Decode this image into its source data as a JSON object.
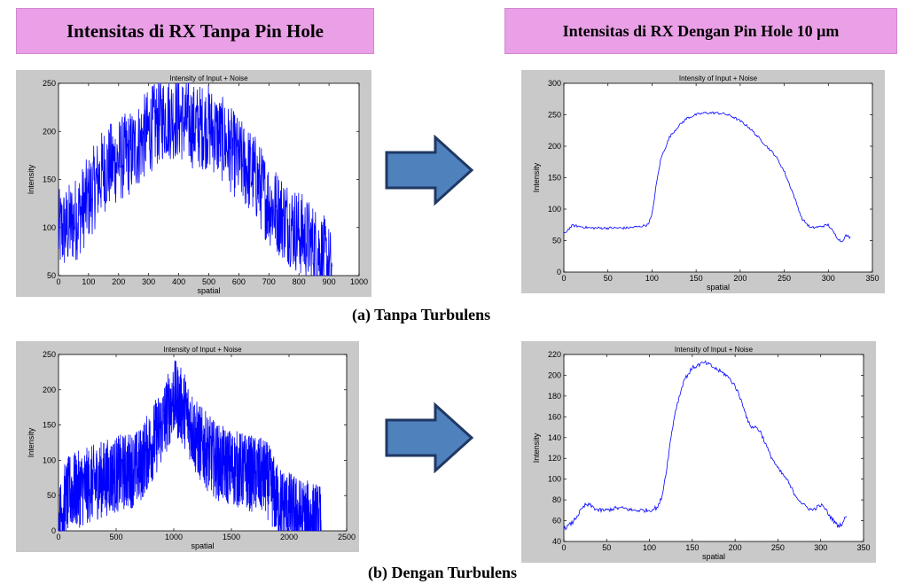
{
  "headers": {
    "left": "Intensitas di RX Tanpa Pin Hole",
    "right": "Intensitas di RX Dengan Pin Hole 10 μm"
  },
  "captions": {
    "a": "(a) Tanpa Turbulens",
    "b": "(b) Dengan  Turbulens"
  },
  "colors": {
    "header_bg": "#e9a0e6",
    "arrow_fill": "#4f81bd",
    "arrow_stroke": "#1f3864",
    "line": "#0000ff",
    "figure_bg": "#c9c9c9"
  },
  "icons": {
    "arrow": "right-arrow-icon"
  },
  "chart_data": [
    {
      "id": "a-left",
      "type": "line",
      "title": "Intensity of Input + Noise",
      "xlabel": "spatial",
      "ylabel": "Intensity",
      "xlim": [
        0,
        1000
      ],
      "ylim": [
        50,
        250
      ],
      "xticks": [
        0,
        100,
        200,
        300,
        400,
        500,
        600,
        700,
        800,
        900,
        1000
      ],
      "yticks": [
        50,
        100,
        150,
        200,
        250
      ],
      "noise": {
        "amp": 45,
        "density": 3
      },
      "series": [
        {
          "x": [
            0,
            30,
            60,
            100,
            150,
            200,
            250,
            300,
            350,
            400,
            450,
            500,
            550,
            600,
            650,
            700,
            750,
            800,
            850,
            880,
            910
          ],
          "values": [
            95,
            100,
            110,
            130,
            160,
            170,
            180,
            200,
            215,
            215,
            205,
            205,
            190,
            170,
            155,
            125,
            110,
            95,
            80,
            70,
            52
          ]
        }
      ]
    },
    {
      "id": "a-right",
      "type": "line",
      "title": "Intensity of Input + Noise",
      "xlabel": "spatial",
      "ylabel": "Intensity",
      "xlim": [
        0,
        350
      ],
      "ylim": [
        0,
        300
      ],
      "xticks": [
        0,
        50,
        100,
        150,
        200,
        250,
        300,
        350
      ],
      "yticks": [
        0,
        50,
        100,
        150,
        200,
        250,
        300
      ],
      "noise": {
        "amp": 2,
        "density": 1
      },
      "series": [
        {
          "x": [
            0,
            5,
            10,
            20,
            30,
            50,
            70,
            85,
            95,
            100,
            105,
            110,
            120,
            130,
            140,
            150,
            160,
            170,
            180,
            190,
            200,
            210,
            220,
            230,
            240,
            250,
            260,
            270,
            280,
            290,
            300,
            305,
            310,
            315,
            320,
            325
          ],
          "values": [
            60,
            68,
            74,
            72,
            70,
            70,
            70,
            72,
            75,
            90,
            140,
            180,
            215,
            232,
            245,
            250,
            253,
            253,
            252,
            248,
            240,
            230,
            215,
            200,
            185,
            160,
            125,
            85,
            70,
            72,
            75,
            65,
            55,
            48,
            58,
            55
          ]
        }
      ]
    },
    {
      "id": "b-left",
      "type": "line",
      "title": "Intensity of Input + Noise",
      "xlabel": "spatial",
      "ylabel": "Intensity",
      "xlim": [
        0,
        2500
      ],
      "ylim": [
        0,
        250
      ],
      "xticks": [
        0,
        500,
        1000,
        1500,
        2000,
        2500
      ],
      "yticks": [
        0,
        50,
        100,
        150,
        200,
        250
      ],
      "noise": {
        "amp": 55,
        "density": 5
      },
      "series": [
        {
          "x": [
            0,
            50,
            100,
            200,
            400,
            600,
            700,
            800,
            900,
            1000,
            1050,
            1100,
            1200,
            1300,
            1400,
            1500,
            1600,
            1700,
            1800,
            1850,
            1900,
            2000,
            2100,
            2200,
            2280
          ],
          "values": [
            5,
            40,
            55,
            60,
            75,
            85,
            90,
            120,
            150,
            190,
            180,
            170,
            130,
            110,
            95,
            90,
            85,
            80,
            75,
            60,
            40,
            30,
            20,
            15,
            12
          ]
        }
      ]
    },
    {
      "id": "b-right",
      "type": "line",
      "title": "Intensity of Input + Noise",
      "xlabel": "spatial",
      "ylabel": "Intensity",
      "xlim": [
        0,
        350
      ],
      "ylim": [
        40,
        220
      ],
      "xticks": [
        0,
        50,
        100,
        150,
        200,
        250,
        300,
        350
      ],
      "yticks": [
        40,
        60,
        80,
        100,
        120,
        140,
        160,
        180,
        200,
        220
      ],
      "noise": {
        "amp": 2,
        "density": 1
      },
      "series": [
        {
          "x": [
            0,
            10,
            20,
            25,
            30,
            40,
            50,
            60,
            70,
            80,
            90,
            100,
            110,
            115,
            120,
            125,
            130,
            140,
            150,
            160,
            165,
            170,
            180,
            190,
            200,
            210,
            215,
            220,
            225,
            230,
            240,
            250,
            260,
            270,
            280,
            290,
            300,
            305,
            310,
            315,
            320,
            325,
            330
          ],
          "values": [
            52,
            58,
            70,
            75,
            75,
            70,
            70,
            72,
            72,
            70,
            70,
            70,
            73,
            85,
            110,
            140,
            165,
            195,
            207,
            211,
            212,
            210,
            205,
            200,
            190,
            170,
            155,
            150,
            150,
            145,
            125,
            110,
            100,
            85,
            75,
            70,
            75,
            72,
            65,
            60,
            55,
            57,
            65
          ]
        }
      ]
    }
  ]
}
